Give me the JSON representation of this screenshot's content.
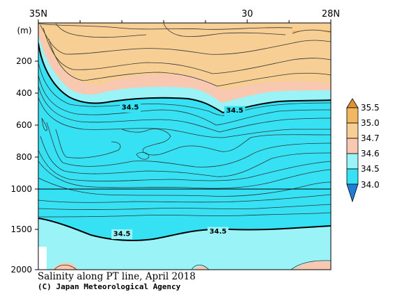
{
  "chart_data": {
    "type": "heatmap",
    "title": "Salinity along PT line, April 2018",
    "credit": "(C) Japan Meteorological Agency",
    "yunit": "(m)",
    "y_ticks": [
      "200",
      "400",
      "600",
      "800",
      "1000",
      "1500",
      "2000"
    ],
    "x_ticks": [
      "35N",
      "30",
      "28N"
    ],
    "x_range": [
      "35N",
      "28N"
    ],
    "y_range": [
      0,
      2000
    ],
    "y_scale_break": 1000,
    "contour_labels": [
      {
        "text": "34.5",
        "x": 32.8,
        "y": 510
      },
      {
        "text": "34.5",
        "x": 30.3,
        "y": 530
      },
      {
        "text": "34.5",
        "x": 33.0,
        "y": 1560
      },
      {
        "text": "34.5",
        "x": 30.7,
        "y": 1530
      }
    ],
    "colorbar": {
      "levels": [
        "35.5",
        "35.0",
        "34.7",
        "34.6",
        "34.5",
        "34.0"
      ],
      "colors": {
        "above_35_5": "#e0942f",
        "35_0_to_35_5": "#f2b860",
        "34_7_to_35_0": "#f7cf95",
        "34_6_to_34_7": "#f9c8b0",
        "34_5_to_34_6": "#9af4f7",
        "34_0_to_34_5": "#36e1f4",
        "below_34_0": "#1f7fd6"
      }
    }
  }
}
